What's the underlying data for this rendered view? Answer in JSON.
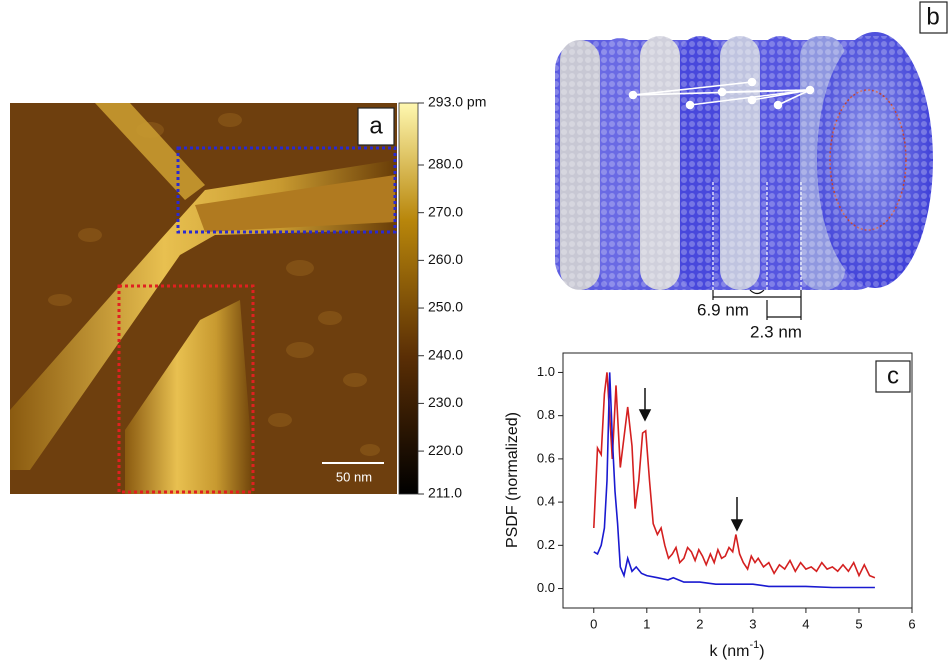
{
  "panel_a": {
    "label": "a",
    "scale_bar": "50 nm",
    "colorbar": {
      "clim": [
        211,
        293
      ],
      "ticks": [
        {
          "value": 293,
          "label": "293.0 pm"
        },
        {
          "value": 280,
          "label": "280.0"
        },
        {
          "value": 270,
          "label": "270.0"
        },
        {
          "value": 260,
          "label": "260.0"
        },
        {
          "value": 250,
          "label": "250.0"
        },
        {
          "value": 240,
          "label": "240.0"
        },
        {
          "value": 230,
          "label": "230.0"
        },
        {
          "value": 220,
          "label": "220.0"
        },
        {
          "value": 211,
          "label": "211.0"
        }
      ]
    }
  },
  "panel_b": {
    "label": "b",
    "dimension_1": "6.9 nm",
    "dimension_2": "2.3 nm"
  },
  "chart_data": {
    "type": "line",
    "label": "c",
    "y_label": "PSDF (normalized)",
    "x_label": {
      "base": "k (nm",
      "superscript": "-1",
      "end": ")"
    },
    "xlim": [
      -0.58,
      6
    ],
    "ylim": [
      -0.09,
      1.09
    ],
    "xticks": [
      0,
      1,
      2,
      3,
      4,
      5,
      6
    ],
    "yticks": [
      {
        "value": 0,
        "label": "0.0"
      },
      0.2,
      0.4,
      0.6,
      0.8,
      {
        "value": 1,
        "label": "1.0"
      }
    ],
    "series": [
      {
        "color": "#d42020",
        "x": [
          0,
          0.07,
          0.14,
          0.2,
          0.25,
          0.3,
          0.35,
          0.42,
          0.5,
          0.57,
          0.64,
          0.72,
          0.78,
          0.85,
          0.92,
          0.98,
          1.05,
          1.12,
          1.2,
          1.27,
          1.34,
          1.41,
          1.48,
          1.55,
          1.62,
          1.7,
          1.77,
          1.84,
          1.91,
          1.98,
          2.05,
          2.12,
          2.2,
          2.27,
          2.34,
          2.41,
          2.48,
          2.55,
          2.62,
          2.68,
          2.75,
          2.82,
          2.9,
          2.97,
          3.04,
          3.1,
          3.2,
          3.3,
          3.4,
          3.5,
          3.6,
          3.7,
          3.8,
          3.9,
          4.0,
          4.1,
          4.2,
          4.3,
          4.4,
          4.5,
          4.6,
          4.7,
          4.8,
          4.9,
          5.0,
          5.1,
          5.2,
          5.3
        ],
        "values": [
          0.28,
          0.65,
          0.62,
          0.9,
          1.0,
          0.8,
          0.6,
          0.94,
          0.56,
          0.7,
          0.84,
          0.66,
          0.37,
          0.5,
          0.72,
          0.73,
          0.5,
          0.3,
          0.25,
          0.28,
          0.2,
          0.14,
          0.16,
          0.19,
          0.12,
          0.14,
          0.19,
          0.17,
          0.13,
          0.18,
          0.15,
          0.11,
          0.16,
          0.12,
          0.18,
          0.14,
          0.15,
          0.19,
          0.17,
          0.25,
          0.16,
          0.12,
          0.09,
          0.15,
          0.12,
          0.14,
          0.1,
          0.12,
          0.07,
          0.11,
          0.09,
          0.13,
          0.08,
          0.12,
          0.09,
          0.1,
          0.08,
          0.12,
          0.09,
          0.1,
          0.08,
          0.11,
          0.08,
          0.12,
          0.06,
          0.11,
          0.06,
          0.05
        ]
      },
      {
        "color": "#1a1ad0",
        "x": [
          0,
          0.07,
          0.14,
          0.2,
          0.25,
          0.3,
          0.35,
          0.4,
          0.45,
          0.5,
          0.57,
          0.64,
          0.72,
          0.8,
          0.9,
          1.0,
          1.2,
          1.4,
          1.5,
          1.7,
          2.0,
          2.3,
          2.6,
          3.0,
          3.3,
          3.6,
          4.0,
          4.5,
          5.0,
          5.3
        ],
        "values": [
          0.17,
          0.16,
          0.2,
          0.28,
          0.5,
          1.0,
          0.7,
          0.45,
          0.3,
          0.1,
          0.06,
          0.14,
          0.08,
          0.1,
          0.07,
          0.06,
          0.05,
          0.04,
          0.05,
          0.03,
          0.03,
          0.02,
          0.02,
          0.02,
          0.01,
          0.01,
          0.01,
          0.005,
          0.005,
          0.005
        ]
      }
    ]
  }
}
